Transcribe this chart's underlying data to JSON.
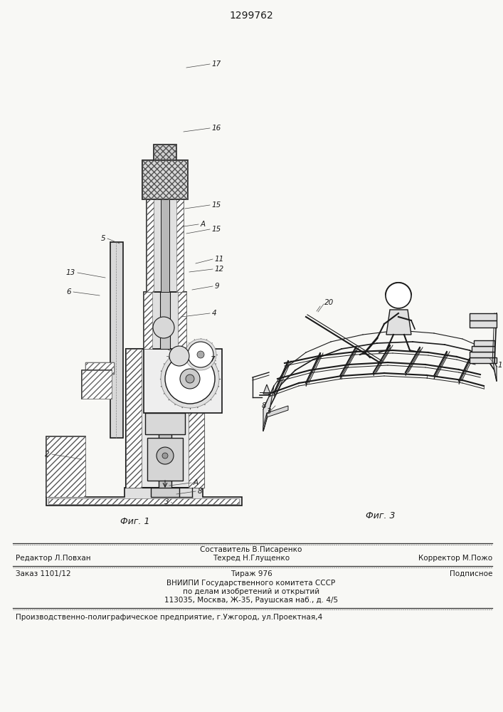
{
  "patent_number": "1299762",
  "bg_color": "#f8f8f5",
  "lc": "#1a1a1a",
  "fig1_caption": "Фиг. 1",
  "fig3_caption": "Фиг. 3",
  "header_line1": "Составитель В.Писаренко",
  "header_line2_left": "Редактор Л.Повхан",
  "header_line2_mid": "Техред Н.Глущенко",
  "header_line2_right": "Корректор М.Пожо",
  "footer1_left": "Заказ 1101/12",
  "footer1_mid": "Тираж 976",
  "footer1_right": "Подписное",
  "footer2": "ВНИИПИ Государственного комитета СССР",
  "footer3": "по делам изобретений и открытий",
  "footer4": "113035, Москва, Ж-35, Раушская наб., д. 4/5",
  "footer5": "Производственно-полиграфическое предприятие, г.Ужгород, ул.Проектная,4"
}
